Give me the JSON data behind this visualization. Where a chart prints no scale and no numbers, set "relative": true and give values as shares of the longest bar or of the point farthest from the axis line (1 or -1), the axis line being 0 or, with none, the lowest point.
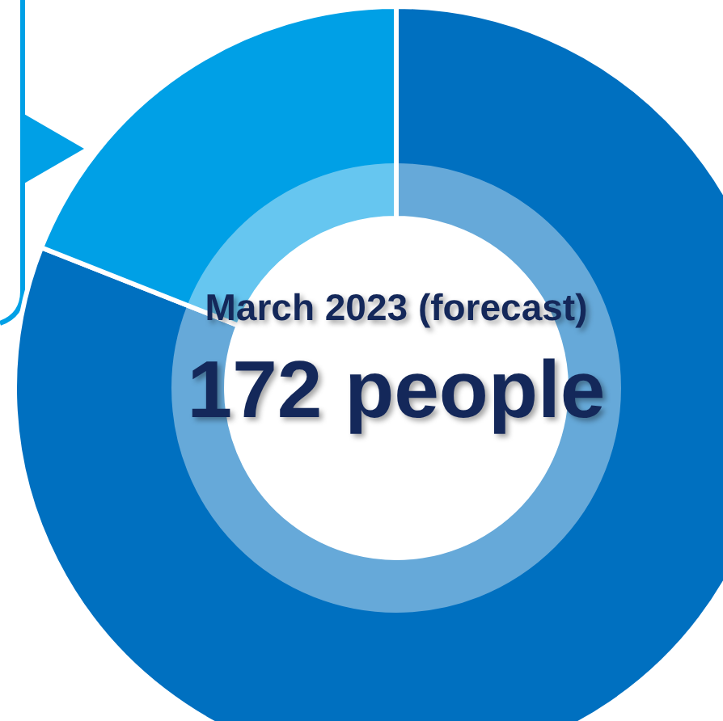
{
  "chart_data": {
    "type": "donut",
    "relative": true,
    "categories": [
      null,
      null
    ],
    "values": [
      81,
      19
    ],
    "colors": [
      "#0070c0",
      "#00a0e6"
    ],
    "annotations": [
      "March 2023 (forecast)",
      "172 people"
    ]
  }
}
